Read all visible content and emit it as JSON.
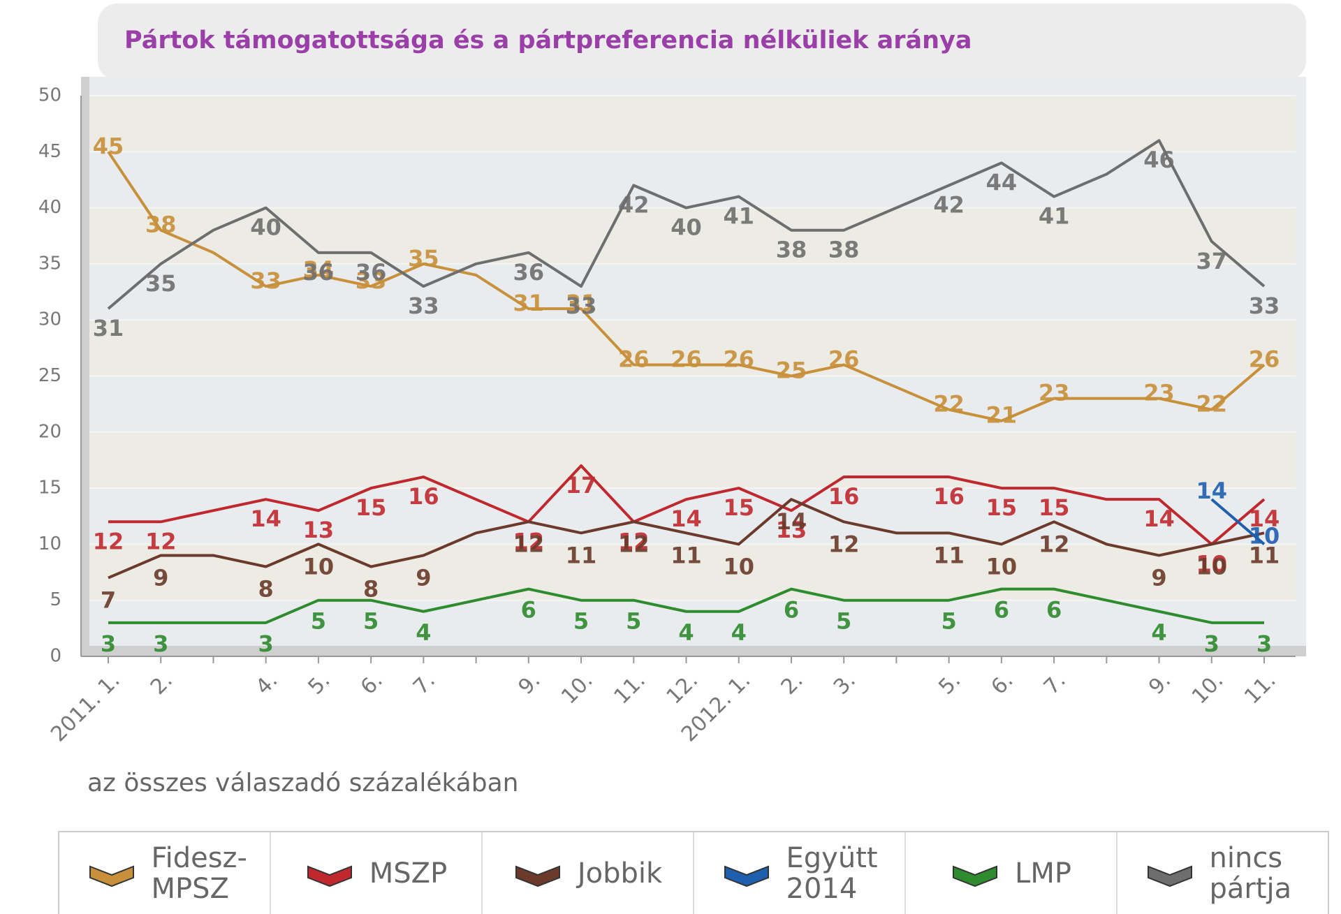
{
  "chart_data": {
    "type": "line",
    "title": "Pártok támogatottsága és a pártpreferencia nélküliek aránya",
    "subtitle": "az összes válaszadó százalékában",
    "categories": [
      "2011. 1.",
      "2.",
      null,
      "4.",
      "5.",
      "6.",
      "7.",
      null,
      "9.",
      "10.",
      "11.",
      "12.",
      "2012. 1.",
      "2.",
      "3.",
      null,
      "5.",
      "6.",
      "7.",
      null,
      "9.",
      "10.",
      "11."
    ],
    "series": [
      {
        "name": "Fidesz-MPSZ",
        "color": "#c8903a",
        "values": [
          45,
          38,
          36,
          33,
          34,
          33,
          35,
          34,
          31,
          31,
          26,
          26,
          26,
          25,
          26,
          24,
          22,
          21,
          23,
          23,
          23,
          22,
          26
        ]
      },
      {
        "name": "MSZP",
        "color": "#c0282e",
        "values": [
          12,
          12,
          13,
          14,
          13,
          15,
          16,
          14,
          12,
          17,
          12,
          14,
          15,
          13,
          16,
          16,
          16,
          15,
          15,
          14,
          14,
          10,
          14
        ]
      },
      {
        "name": "Jobbik",
        "color": "#6b3a2a",
        "values": [
          7,
          9,
          9,
          8,
          10,
          8,
          9,
          11,
          12,
          11,
          12,
          11,
          10,
          14,
          12,
          11,
          11,
          10,
          12,
          10,
          9,
          10,
          11
        ]
      },
      {
        "name": "Együtt 2014",
        "color": "#1f5fb0",
        "values": [
          null,
          null,
          null,
          null,
          null,
          null,
          null,
          null,
          null,
          null,
          null,
          null,
          null,
          null,
          null,
          null,
          null,
          null,
          null,
          null,
          null,
          14,
          10
        ]
      },
      {
        "name": "LMP",
        "color": "#2e8b2e",
        "values": [
          3,
          3,
          3,
          3,
          5,
          5,
          4,
          5,
          6,
          5,
          5,
          4,
          4,
          6,
          5,
          5,
          5,
          6,
          6,
          5,
          4,
          3,
          3
        ]
      },
      {
        "name": "nincs pártja",
        "color": "#6e6e6e",
        "values": [
          31,
          35,
          38,
          40,
          36,
          36,
          33,
          35,
          36,
          33,
          42,
          40,
          41,
          38,
          38,
          40,
          42,
          44,
          41,
          43,
          46,
          37,
          33
        ]
      }
    ],
    "ylim": [
      0,
      50
    ],
    "yticks": [
      0,
      5,
      10,
      15,
      20,
      25,
      30,
      35,
      40,
      45,
      50
    ],
    "grid": true
  }
}
